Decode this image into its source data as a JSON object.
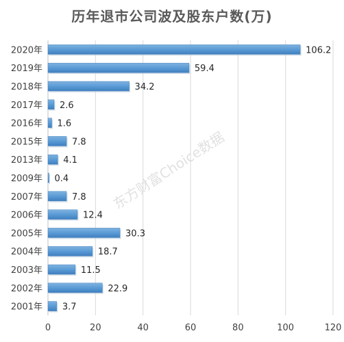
{
  "chart_data": {
    "type": "bar",
    "orientation": "horizontal",
    "title": "历年退市公司波及股东户数(万)",
    "categories": [
      "2020年",
      "2019年",
      "2018年",
      "2017年",
      "2016年",
      "2015年",
      "2013年",
      "2009年",
      "2007年",
      "2006年",
      "2005年",
      "2004年",
      "2003年",
      "2002年",
      "2001年"
    ],
    "values": [
      106.2,
      59.4,
      34.2,
      2.6,
      1.6,
      7.8,
      4.1,
      0.4,
      7.8,
      12.4,
      30.3,
      18.7,
      11.5,
      22.9,
      3.7
    ],
    "data_labels": [
      "106.2",
      "59.4",
      "34.2",
      "2.6",
      "1.6",
      "7.8",
      "4.1",
      "0.4",
      "7.8",
      "12.4",
      "30.3",
      "18.7",
      "11.5",
      "22.9",
      "3.7"
    ],
    "xlim": [
      0,
      120
    ],
    "xticks": [
      "0",
      "20",
      "40",
      "60",
      "80",
      "100",
      "120"
    ],
    "xtick_values": [
      0,
      20,
      40,
      60,
      80,
      100,
      120
    ],
    "grid": true,
    "legend": "none",
    "bar_color": "#5b9bd5",
    "watermark": "东方财富Choice数据"
  }
}
